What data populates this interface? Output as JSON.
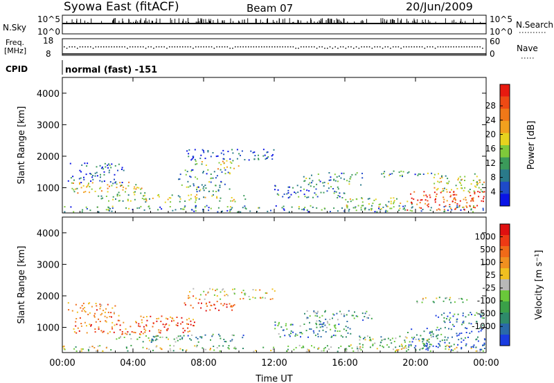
{
  "header": {
    "title": "Syowa East (fitACF)",
    "beam": "Beam 07",
    "date": "20/Jun/2009"
  },
  "top_panels": {
    "nsky": {
      "label": "N.Sky",
      "tick_top": "10^5",
      "tick_bottom": "10^0",
      "right_label": "N.Search",
      "right_tick_top": "10^5",
      "right_tick_bottom": "10^0"
    },
    "freq": {
      "label_line1": "Freq.",
      "label_line2": "[MHz]",
      "tick_top": "18",
      "tick_bottom": "8",
      "right_label": "Nave",
      "right_tick_top": "60",
      "right_tick_bottom": "0"
    },
    "cpid": {
      "label": "CPID",
      "text": "normal (fast) -151"
    }
  },
  "chart_data": [
    {
      "type": "heatmap",
      "name": "power-panel",
      "ylabel": "Slant Range [km]",
      "ylim": [
        200,
        4500
      ],
      "yticks": [
        "1000",
        "2000",
        "3000",
        "4000"
      ],
      "ytick_values": [
        1000,
        2000,
        3000,
        4000
      ],
      "xlim": [
        0,
        24
      ],
      "colorbar": {
        "label": "Power [dB]",
        "ticks": [
          "4",
          "8",
          "12",
          "16",
          "20",
          "24",
          "28"
        ],
        "colors": [
          "#0a14e6",
          "#1e4ac8",
          "#2a7a8a",
          "#3b9a5a",
          "#7fc93a",
          "#e6d21e",
          "#f2a01e",
          "#f07818",
          "#ee4a14",
          "#e81a10"
        ]
      },
      "scatter_bands": [
        {
          "t0": 0.5,
          "t1": 4.5,
          "r0": 850,
          "r1": 1200,
          "level": 0.55
        },
        {
          "t0": 0.3,
          "t1": 3.5,
          "r0": 1150,
          "r1": 1800,
          "level": 0.2
        },
        {
          "t0": 2.0,
          "t1": 5.0,
          "r0": 600,
          "r1": 900,
          "level": 0.4
        },
        {
          "t0": 4.5,
          "t1": 10.5,
          "r0": 550,
          "r1": 800,
          "level": 0.5
        },
        {
          "t0": 6.5,
          "t1": 9.5,
          "r0": 900,
          "r1": 1600,
          "level": 0.3
        },
        {
          "t0": 7.5,
          "t1": 10.0,
          "r0": 1600,
          "r1": 1900,
          "level": 0.5
        },
        {
          "t0": 7.0,
          "t1": 12.0,
          "r0": 1900,
          "r1": 2250,
          "level": 0.15
        },
        {
          "t0": 0.0,
          "t1": 24.0,
          "r0": 250,
          "r1": 450,
          "level": 0.3
        },
        {
          "t0": 12.0,
          "t1": 16.0,
          "r0": 700,
          "r1": 1100,
          "level": 0.25
        },
        {
          "t0": 13.5,
          "t1": 17.0,
          "r0": 1100,
          "r1": 1500,
          "level": 0.3
        },
        {
          "t0": 16.0,
          "t1": 20.0,
          "r0": 350,
          "r1": 700,
          "level": 0.45
        },
        {
          "t0": 18.0,
          "t1": 22.0,
          "r0": 1350,
          "r1": 1550,
          "level": 0.3
        },
        {
          "t0": 19.5,
          "t1": 23.9,
          "r0": 300,
          "r1": 900,
          "level": 0.85
        },
        {
          "t0": 21.0,
          "t1": 23.9,
          "r0": 900,
          "r1": 1500,
          "level": 0.5
        }
      ]
    },
    {
      "type": "heatmap",
      "name": "velocity-panel",
      "ylabel": "Slant Range [km]",
      "xlabel": "Time UT",
      "ylim": [
        200,
        4500
      ],
      "yticks": [
        "1000",
        "2000",
        "3000",
        "4000"
      ],
      "ytick_values": [
        1000,
        2000,
        3000,
        4000
      ],
      "xlim": [
        0,
        24
      ],
      "xticks": [
        "00:00",
        "04:00",
        "08:00",
        "12:00",
        "16:00",
        "20:00",
        "00:00"
      ],
      "xtick_values": [
        0,
        4,
        8,
        12,
        16,
        20,
        24
      ],
      "colorbar": {
        "label": "Velocity [m s⁻¹]",
        "ticks": [
          "1000",
          "500",
          "100",
          "25",
          "-25",
          "-100",
          "-500",
          "-1000"
        ],
        "colors": [
          "#1a3ce0",
          "#2a6aa8",
          "#2e8a6a",
          "#3aa048",
          "#6ac83a",
          "#b8b8b8",
          "#f0c020",
          "#f09020",
          "#f06a18",
          "#ee3a14",
          "#e01010"
        ]
      },
      "scatter_bands": [
        {
          "t0": 0.5,
          "t1": 7.5,
          "r0": 800,
          "r1": 1400,
          "level": 0.8
        },
        {
          "t0": 0.3,
          "t1": 3.0,
          "r0": 1400,
          "r1": 1800,
          "level": 0.7
        },
        {
          "t0": 3.0,
          "t1": 6.0,
          "r0": 600,
          "r1": 800,
          "level": 0.45
        },
        {
          "t0": 4.5,
          "t1": 10.5,
          "r0": 550,
          "r1": 800,
          "level": 0.3
        },
        {
          "t0": 6.8,
          "t1": 9.8,
          "r0": 1550,
          "r1": 1850,
          "level": 0.85
        },
        {
          "t0": 7.0,
          "t1": 12.0,
          "r0": 1900,
          "r1": 2250,
          "level": 0.6
        },
        {
          "t0": 0.0,
          "t1": 24.0,
          "r0": 250,
          "r1": 450,
          "level": 0.45
        },
        {
          "t0": 12.0,
          "t1": 16.5,
          "r0": 700,
          "r1": 1200,
          "level": 0.25
        },
        {
          "t0": 13.5,
          "t1": 17.5,
          "r0": 1200,
          "r1": 1550,
          "level": 0.3
        },
        {
          "t0": 16.0,
          "t1": 21.0,
          "r0": 350,
          "r1": 750,
          "level": 0.35
        },
        {
          "t0": 19.5,
          "t1": 23.9,
          "r0": 300,
          "r1": 1000,
          "level": 0.15
        },
        {
          "t0": 21.0,
          "t1": 23.9,
          "r0": 1000,
          "r1": 1500,
          "level": 0.2
        },
        {
          "t0": 20.0,
          "t1": 23.0,
          "r0": 1800,
          "r1": 2000,
          "level": 0.45
        }
      ]
    }
  ]
}
